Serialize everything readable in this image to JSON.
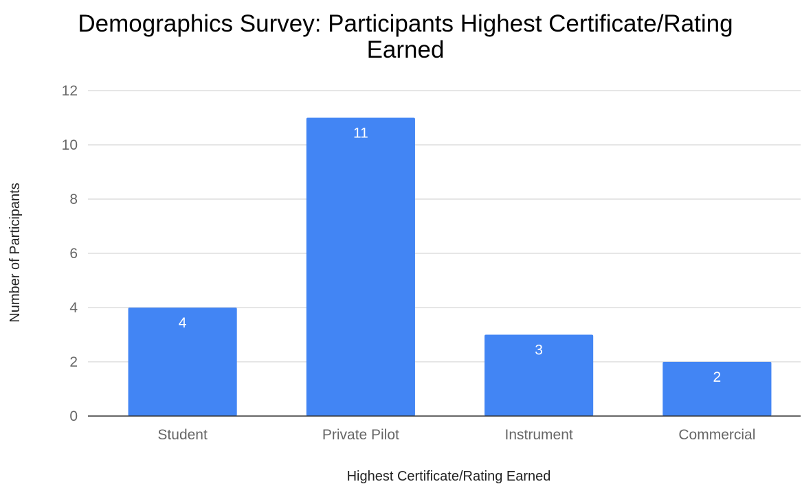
{
  "chart_data": {
    "type": "bar",
    "title_lines": [
      "Demographics Survey: Participants Highest Certificate/Rating",
      "Earned"
    ],
    "xlabel": "Highest Certificate/Rating Earned",
    "ylabel": "Number of Participants",
    "categories": [
      "Student",
      "Private Pilot",
      "Instrument",
      "Commercial"
    ],
    "values": [
      4,
      11,
      3,
      2
    ],
    "ylim": [
      0,
      12
    ],
    "yticks": [
      0,
      2,
      4,
      6,
      8,
      10,
      12
    ],
    "grid": true,
    "data_labels": true,
    "bar_color": "#4285f4"
  }
}
